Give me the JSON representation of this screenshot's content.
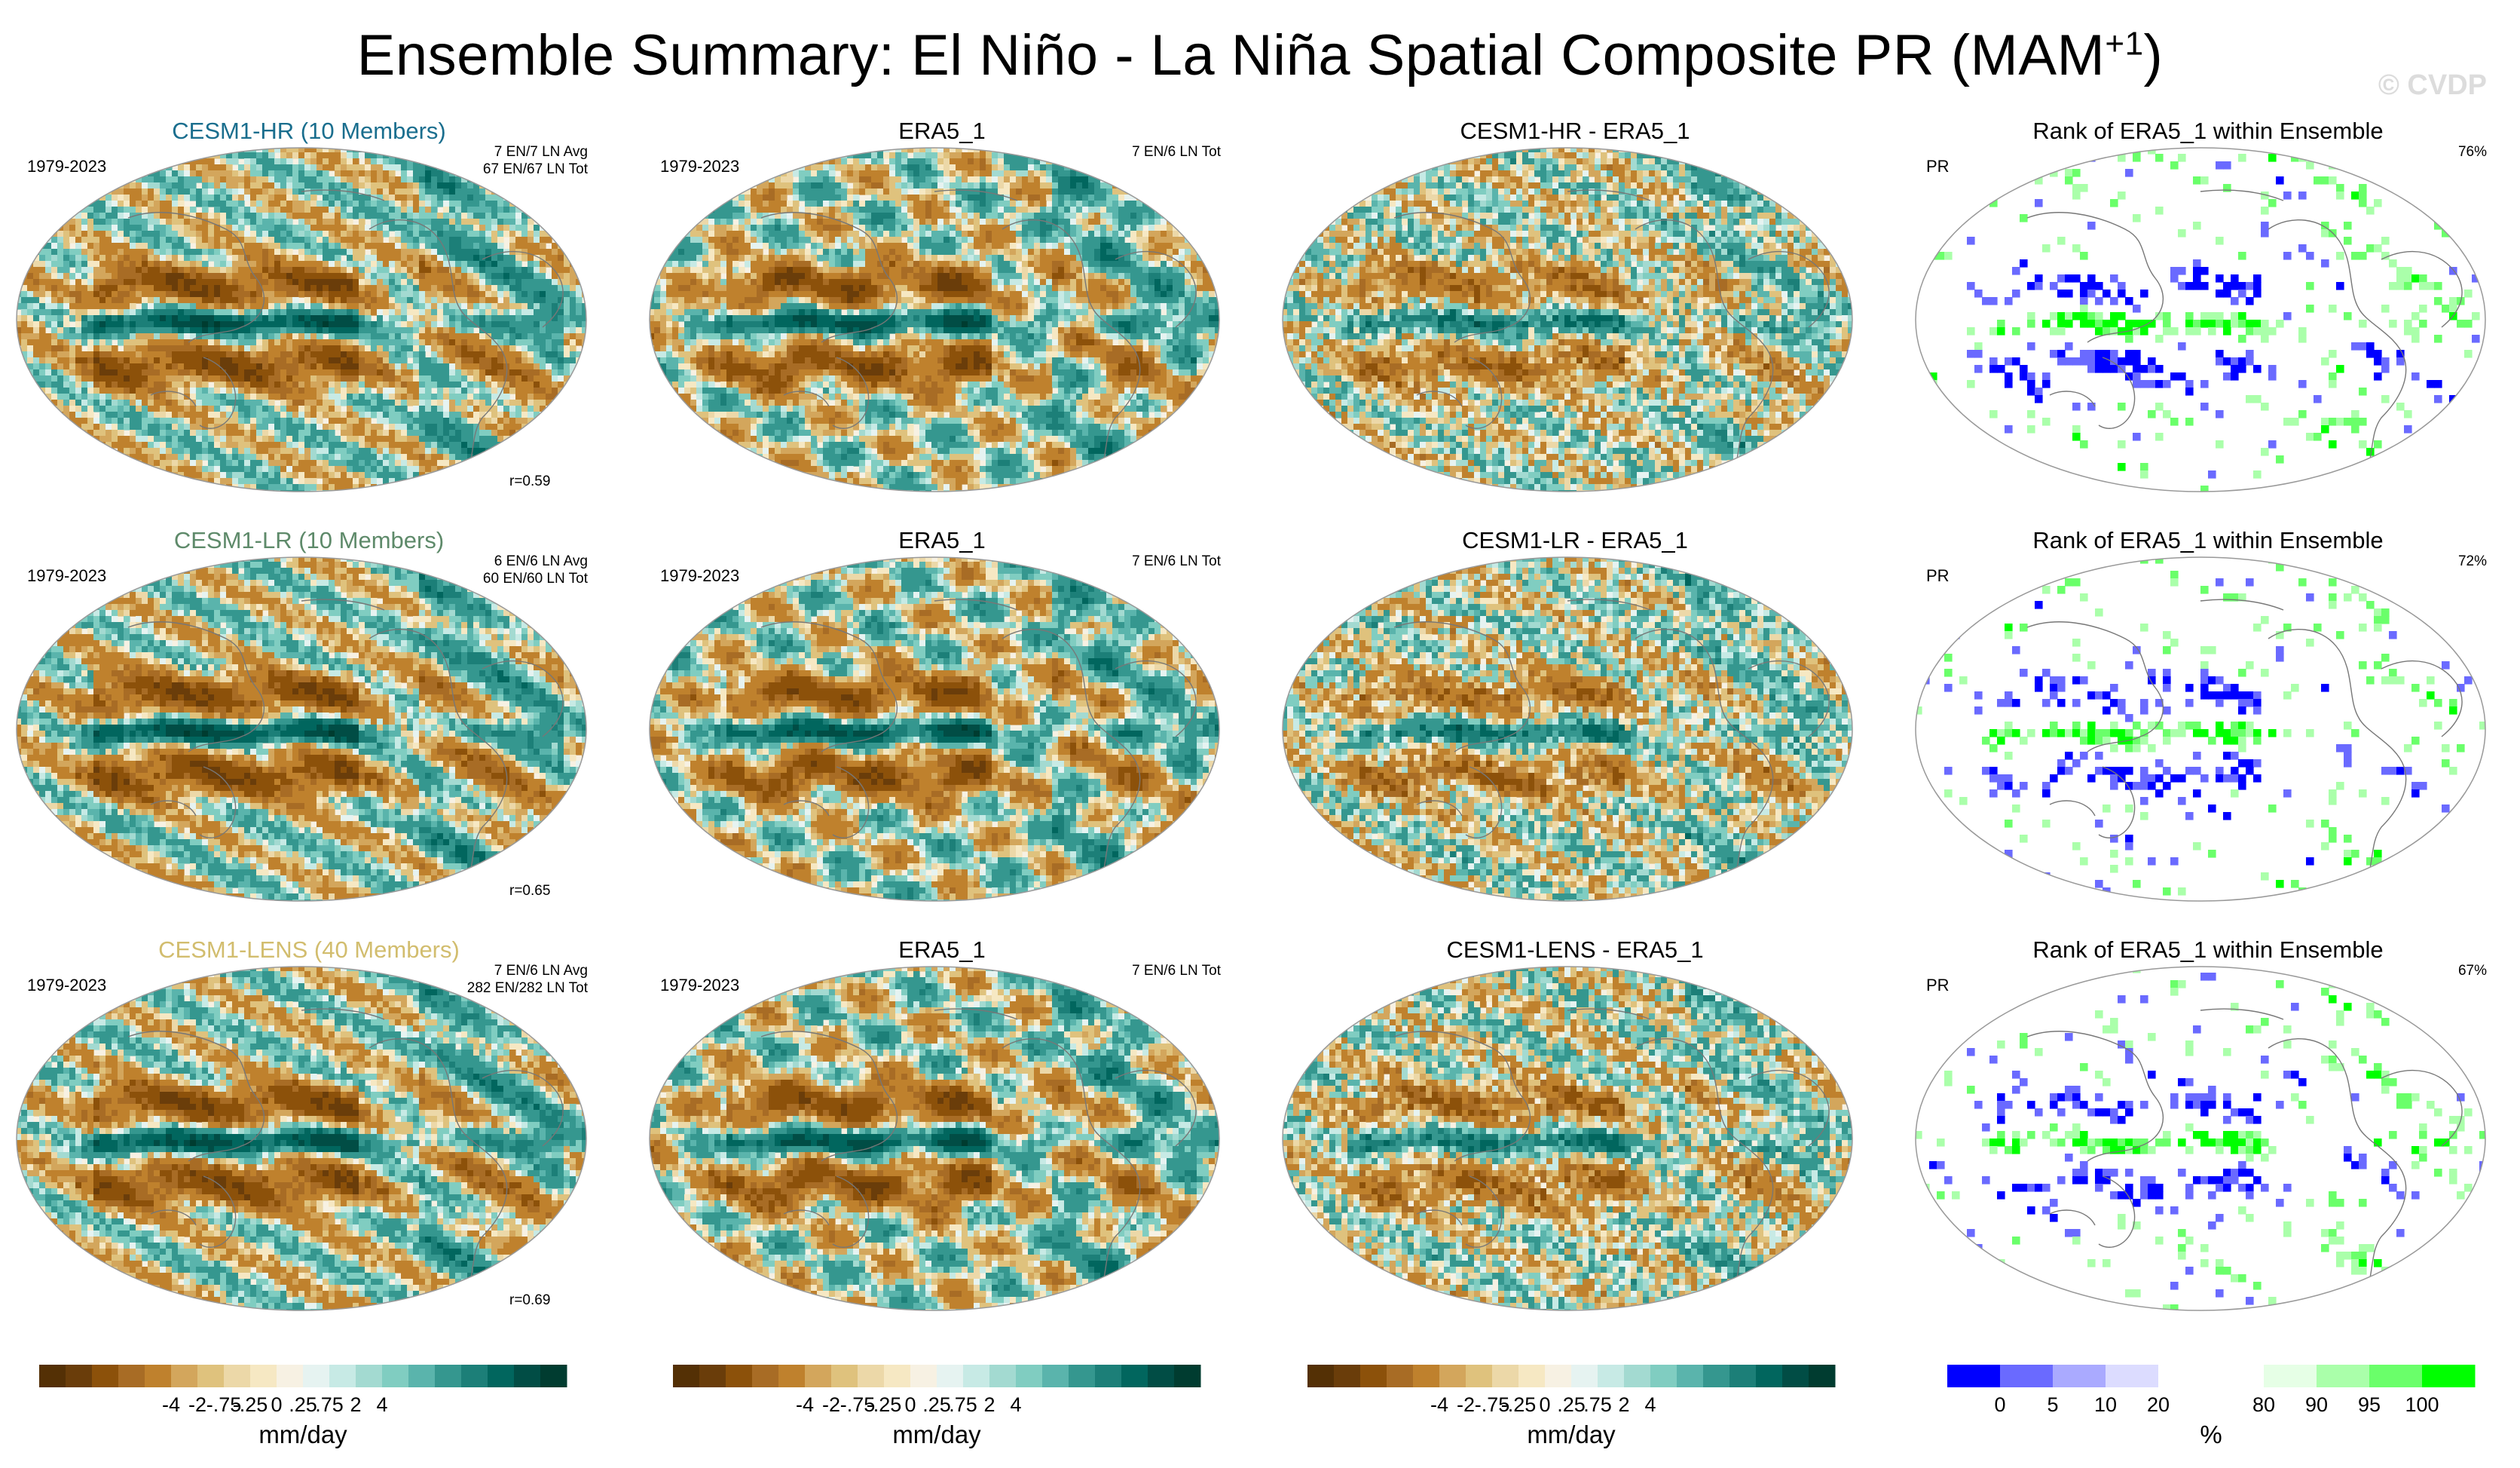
{
  "title": "Ensemble Summary: El Niño - La Niña Spatial Composite PR (MAM",
  "title_sup": "+1",
  "title_end": ")",
  "watermark": "© CVDP",
  "colors": {
    "brown_scale": [
      "#543005",
      "#6a3d0a",
      "#8c510a",
      "#a86c25",
      "#bf812d",
      "#d3a65c",
      "#dfc27d",
      "#ecd8a8",
      "#f6e8c3",
      "#f7f1e3"
    ],
    "teal_scale": [
      "#e6f3f1",
      "#c7eae5",
      "#a3dad1",
      "#80cdc1",
      "#5ab4ac",
      "#35978f",
      "#1c7f78",
      "#01665e",
      "#014d45",
      "#003c30"
    ],
    "rank_colors": [
      "#0000ff",
      "#6a6aff",
      "#aaaaff",
      "#dcdcff",
      "#ffffff",
      "#ffffff",
      "#e6ffe6",
      "#aaffaa",
      "#6aff6a",
      "#00ff00"
    ]
  },
  "panels": [
    {
      "title": "CESM1-HR (10 Members)",
      "title_color": "#1a6e8e",
      "left": "1979-2023",
      "right": "7 EN/7 LN Avg\n67 EN/67 LN Tot",
      "corr": "r=0.59",
      "type": "model",
      "seed": 11
    },
    {
      "title": "ERA5_1",
      "title_color": "#000000",
      "left": "1979-2023",
      "right": "7 EN/6 LN Tot",
      "corr": "",
      "type": "obs",
      "seed": 23
    },
    {
      "title": "CESM1-HR - ERA5_1",
      "title_color": "#000000",
      "left": "",
      "right": "",
      "corr": "",
      "type": "diff",
      "seed": 37
    },
    {
      "title": "Rank of ERA5_1 within Ensemble",
      "title_color": "#000000",
      "left": "PR",
      "right": "76%",
      "corr": "",
      "type": "rank",
      "seed": 41
    },
    {
      "title": "CESM1-LR (10 Members)",
      "title_color": "#5e8a6a",
      "left": "1979-2023",
      "right": "6 EN/6 LN Avg\n60 EN/60 LN Tot",
      "corr": "r=0.65",
      "type": "model",
      "seed": 53
    },
    {
      "title": "ERA5_1",
      "title_color": "#000000",
      "left": "1979-2023",
      "right": "7 EN/6 LN Tot",
      "corr": "",
      "type": "obs",
      "seed": 67
    },
    {
      "title": "CESM1-LR - ERA5_1",
      "title_color": "#000000",
      "left": "",
      "right": "",
      "corr": "",
      "type": "diff",
      "seed": 71
    },
    {
      "title": "Rank of ERA5_1 within Ensemble",
      "title_color": "#000000",
      "left": "PR",
      "right": "72%",
      "corr": "",
      "type": "rank",
      "seed": 83
    },
    {
      "title": "CESM1-LENS (40 Members)",
      "title_color": "#d2bd6e",
      "left": "1979-2023",
      "right": "7 EN/6 LN Avg\n282 EN/282 LN Tot",
      "corr": "r=0.69",
      "type": "model",
      "seed": 97
    },
    {
      "title": "ERA5_1",
      "title_color": "#000000",
      "left": "1979-2023",
      "right": "7 EN/6 LN Tot",
      "corr": "",
      "type": "obs",
      "seed": 101
    },
    {
      "title": "CESM1-LENS - ERA5_1",
      "title_color": "#000000",
      "left": "",
      "right": "",
      "corr": "",
      "type": "diff",
      "seed": 113
    },
    {
      "title": "Rank of ERA5_1 within Ensemble",
      "title_color": "#000000",
      "left": "PR",
      "right": "67%",
      "corr": "",
      "type": "rank",
      "seed": 127
    }
  ],
  "colorbars": [
    {
      "ticks": [
        "-4",
        "-2",
        "-.75",
        "-.25",
        "0",
        ".25",
        ".75",
        "2",
        "4"
      ],
      "label": "mm/day",
      "kind": "pr"
    },
    {
      "ticks": [
        "-4",
        "-2",
        "-.75",
        "-.25",
        "0",
        ".25",
        ".75",
        "2",
        "4"
      ],
      "label": "mm/day",
      "kind": "pr"
    },
    {
      "ticks": [
        "-4",
        "-2",
        "-.75",
        "-.25",
        "0",
        ".25",
        ".75",
        "2",
        "4"
      ],
      "label": "mm/day",
      "kind": "pr"
    },
    {
      "ticks": [
        "0",
        "5",
        "10",
        "20",
        "80",
        "90",
        "95",
        "100"
      ],
      "label": "%",
      "kind": "rank"
    }
  ]
}
